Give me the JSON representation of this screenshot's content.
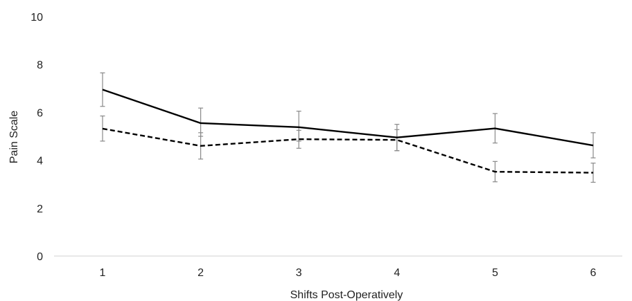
{
  "chart_data": {
    "type": "line",
    "title": "",
    "xlabel": "Shifts Post-Operatively",
    "ylabel": "Pain Scale",
    "x": [
      1,
      2,
      3,
      4,
      5,
      6
    ],
    "ylim": [
      0,
      10
    ],
    "yticks": [
      0,
      2,
      4,
      6,
      8,
      10
    ],
    "grid": false,
    "legend": "none",
    "series": [
      {
        "style": "solid",
        "color": "#000000",
        "values": [
          6.95,
          5.55,
          5.38,
          4.95,
          5.33,
          4.62
        ],
        "error_low": [
          6.25,
          5.0,
          4.8,
          4.4,
          4.72,
          4.1
        ],
        "error_high": [
          7.65,
          6.18,
          6.05,
          5.5,
          5.95,
          5.15
        ]
      },
      {
        "style": "dashed",
        "color": "#000000",
        "values": [
          5.32,
          4.6,
          4.88,
          4.85,
          3.52,
          3.48
        ],
        "error_low": [
          4.8,
          4.05,
          4.5,
          4.4,
          3.1,
          3.08
        ],
        "error_high": [
          5.85,
          5.15,
          5.25,
          5.28,
          3.95,
          3.88
        ]
      }
    ]
  }
}
